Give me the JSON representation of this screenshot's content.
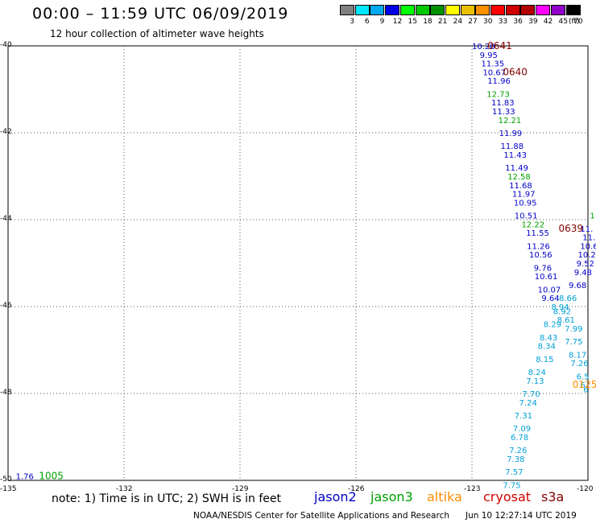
{
  "header": {
    "title": "00:00 – 11:59 UTC 06/09/2019",
    "subtitle": "12 hour collection of altimeter wave heights"
  },
  "colorbar": {
    "colors": [
      "#808080",
      "#00e8ff",
      "#00a8f0",
      "#0000e8",
      "#00ff00",
      "#00c800",
      "#009000",
      "#ffff00",
      "#e8c000",
      "#ff9000",
      "#ff0000",
      "#d00000",
      "#b00000",
      "#ff00ff",
      "#9000c8",
      "#000000"
    ],
    "labels": [
      "3",
      "6",
      "9",
      "12",
      "15",
      "18",
      "21",
      "24",
      "27",
      "30",
      "33",
      "36",
      "39",
      "42",
      "45",
      "70"
    ],
    "unit": "(ft)"
  },
  "note": "note: 1) Time is in UTC; 2) SWH is in feet",
  "legend": [
    {
      "label": "jason2",
      "color": "#0000c8"
    },
    {
      "label": "jason3",
      "color": "#00a000"
    },
    {
      "label": "altika",
      "color": "#ff8c00"
    },
    {
      "label": "cryosat",
      "color": "#d00000"
    },
    {
      "label": "s3a",
      "color": "#800000"
    }
  ],
  "footer": {
    "credit": "NOAA/NESDIS Center for Satellite Applications and Research",
    "timestamp": "Jun 10 12:27:14 UTC 2019"
  },
  "chart_data": {
    "type": "scatter",
    "title": "00:00 – 11:59 UTC 06/09/2019",
    "subtitle": "12 hour collection of altimeter wave heights",
    "xlabel": "",
    "ylabel": "",
    "xlim": [
      -135,
      -120
    ],
    "ylim": [
      -50,
      -40
    ],
    "xticks": [
      "-135",
      "-132",
      "-129",
      "-126",
      "-123",
      "-120"
    ],
    "yticks": [
      "-40",
      "-42",
      "-44",
      "-46",
      "-48",
      "-50"
    ],
    "grid": true,
    "series": [
      {
        "name": "jason2",
        "color": "#0000c8",
        "points": [
          {
            "label": "10.28",
            "lon": -123.0,
            "lat": -40.0
          },
          {
            "label": "9.95",
            "lon": -122.8,
            "lat": -40.2
          },
          {
            "label": "11.35",
            "lon": -122.76,
            "lat": -40.4
          },
          {
            "label": "10.67",
            "lon": -122.72,
            "lat": -40.6
          },
          {
            "label": "11.96",
            "lon": -122.6,
            "lat": -40.8
          },
          {
            "label": "11.83",
            "lon": -122.5,
            "lat": -41.3
          },
          {
            "label": "11.33",
            "lon": -122.48,
            "lat": -41.5
          },
          {
            "label": "11.99",
            "lon": -122.3,
            "lat": -42.0
          },
          {
            "label": "11.88",
            "lon": -122.26,
            "lat": -42.3
          },
          {
            "label": "11.43",
            "lon": -122.18,
            "lat": -42.5
          },
          {
            "label": "11.49",
            "lon": -122.14,
            "lat": -42.8
          },
          {
            "label": "11.68",
            "lon": -122.04,
            "lat": -43.2
          },
          {
            "label": "11.97",
            "lon": -121.96,
            "lat": -43.4
          },
          {
            "label": "10.95",
            "lon": -121.92,
            "lat": -43.6
          },
          {
            "label": "10.51",
            "lon": -121.9,
            "lat": -43.9
          },
          {
            "label": "11.55",
            "lon": -121.6,
            "lat": -44.3
          },
          {
            "label": "11.26",
            "lon": -121.58,
            "lat": -44.6
          },
          {
            "label": "10.56",
            "lon": -121.52,
            "lat": -44.8
          },
          {
            "label": "9.76",
            "lon": -121.4,
            "lat": -45.1
          },
          {
            "label": "10.61",
            "lon": -121.38,
            "lat": -45.3
          },
          {
            "label": "10.07",
            "lon": -121.3,
            "lat": -45.6
          },
          {
            "label": "9.64",
            "lon": -121.2,
            "lat": -45.8
          },
          {
            "label": "11.",
            "lon": -120.2,
            "lat": -44.2
          },
          {
            "label": "11.",
            "lon": -120.14,
            "lat": -44.4
          },
          {
            "label": "10.6",
            "lon": -120.2,
            "lat": -44.6
          },
          {
            "label": "10.2",
            "lon": -120.26,
            "lat": -44.8
          },
          {
            "label": "9.52",
            "lon": -120.3,
            "lat": -45.0
          },
          {
            "label": "9.48",
            "lon": -120.36,
            "lat": -45.2
          },
          {
            "label": "9.68",
            "lon": -120.5,
            "lat": -45.5
          },
          {
            "label": "1.76",
            "lon": -134.8,
            "lat": -49.9
          }
        ]
      },
      {
        "name": "jason3",
        "color": "#00a000",
        "points": [
          {
            "label": "12.73",
            "lon": -122.62,
            "lat": -41.1
          },
          {
            "label": "12.21",
            "lon": -122.32,
            "lat": -41.7
          },
          {
            "label": "12.58",
            "lon": -122.08,
            "lat": -43.0
          },
          {
            "label": "12.22",
            "lon": -121.72,
            "lat": -44.1
          },
          {
            "label": "1.",
            "lon": -119.95,
            "lat": -43.9
          },
          {
            "label": "1005",
            "lon": -134.2,
            "lat": -49.9
          }
        ]
      },
      {
        "name": "low-swh",
        "color": "#00a0d8",
        "points": [
          {
            "label": "8.66",
            "lon": -120.75,
            "lat": -45.8
          },
          {
            "label": "8.94",
            "lon": -120.95,
            "lat": -46.0
          },
          {
            "label": "8.92",
            "lon": -120.9,
            "lat": -46.1
          },
          {
            "label": "8.61",
            "lon": -120.8,
            "lat": -46.3
          },
          {
            "label": "8.29",
            "lon": -121.15,
            "lat": -46.4
          },
          {
            "label": "7.99",
            "lon": -120.6,
            "lat": -46.5
          },
          {
            "label": "8.43",
            "lon": -121.25,
            "lat": -46.7
          },
          {
            "label": "7.75",
            "lon": -120.6,
            "lat": -46.8
          },
          {
            "label": "8.34",
            "lon": -121.3,
            "lat": -46.9
          },
          {
            "label": "8.17",
            "lon": -120.5,
            "lat": -47.1
          },
          {
            "label": "8.15",
            "lon": -121.35,
            "lat": -47.2
          },
          {
            "label": "7.26",
            "lon": -120.45,
            "lat": -47.3
          },
          {
            "label": "8.24",
            "lon": -121.55,
            "lat": -47.5
          },
          {
            "label": "6.5",
            "lon": -120.3,
            "lat": -47.6
          },
          {
            "label": "7.13",
            "lon": -121.6,
            "lat": -47.7
          },
          {
            "label": "6.",
            "lon": -120.2,
            "lat": -47.8
          },
          {
            "label": "7.70",
            "lon": -121.7,
            "lat": -48.0
          },
          {
            "label": "6",
            "lon": -120.12,
            "lat": -47.9
          },
          {
            "label": "7.24",
            "lon": -121.78,
            "lat": -48.2
          },
          {
            "label": "7.31",
            "lon": -121.9,
            "lat": -48.5
          },
          {
            "label": "7.09",
            "lon": -121.94,
            "lat": -48.8
          },
          {
            "label": "6.78",
            "lon": -122.0,
            "lat": -49.0
          },
          {
            "label": "7.26",
            "lon": -122.04,
            "lat": -49.3
          },
          {
            "label": "7.38",
            "lon": -122.1,
            "lat": -49.5
          },
          {
            "label": "7.57",
            "lon": -122.14,
            "lat": -49.8
          },
          {
            "label": "7.75",
            "lon": -122.2,
            "lat": -50.1
          }
        ]
      },
      {
        "name": "altika",
        "color": "#ff8c00",
        "points": [
          {
            "label": "0125",
            "lon": -120.4,
            "lat": -47.8
          }
        ]
      },
      {
        "name": "s3a",
        "color": "#800000",
        "points": [
          {
            "label": "0641",
            "lon": -122.6,
            "lat": -40.0
          },
          {
            "label": "0640",
            "lon": -122.2,
            "lat": -40.6
          },
          {
            "label": "0639",
            "lon": -120.76,
            "lat": -44.2
          }
        ]
      }
    ]
  }
}
